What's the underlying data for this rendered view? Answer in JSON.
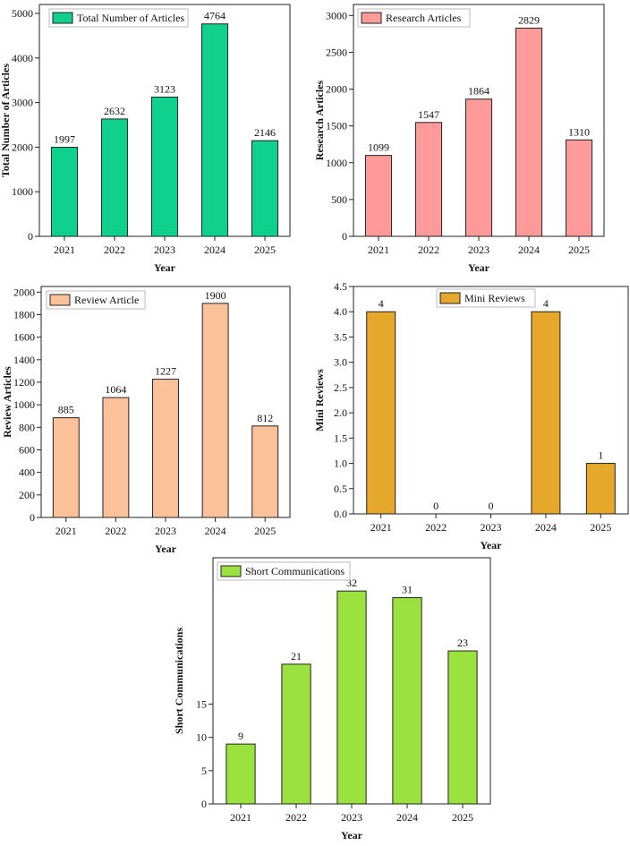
{
  "chart_data": [
    {
      "type": "bar",
      "categories": [
        "2021",
        "2022",
        "2023",
        "2024",
        "2025"
      ],
      "values": [
        1997,
        2632,
        3123,
        4764,
        2146
      ],
      "series_name": "Total Number of Articles",
      "xlabel": "Year",
      "ylabel": "Total Number of Articles",
      "ylim": [
        0,
        5200
      ],
      "yticks": [
        0,
        1000,
        2000,
        3000,
        4000,
        5000
      ],
      "color": "#0fd08c",
      "legend": "top-left"
    },
    {
      "type": "bar",
      "categories": [
        "2021",
        "2022",
        "2023",
        "2024",
        "2025"
      ],
      "values": [
        1099,
        1547,
        1864,
        2829,
        1310
      ],
      "series_name": "Research Articles",
      "xlabel": "Year",
      "ylabel": "Research Articles",
      "ylim": [
        0,
        3150
      ],
      "yticks": [
        0,
        500,
        1000,
        1500,
        2000,
        2500,
        3000
      ],
      "color": "#ff9a9a",
      "legend": "top-left"
    },
    {
      "type": "bar",
      "categories": [
        "2021",
        "2022",
        "2023",
        "2024",
        "2025"
      ],
      "values": [
        885,
        1064,
        1227,
        1900,
        812
      ],
      "series_name": "Review Article",
      "xlabel": "Year",
      "ylabel": "Review  Articles",
      "ylim": [
        0,
        2050
      ],
      "yticks": [
        0,
        200,
        400,
        600,
        800,
        1000,
        1200,
        1400,
        1600,
        1800,
        2000
      ],
      "color": "#fbc299",
      "legend": "top-left"
    },
    {
      "type": "bar",
      "categories": [
        "2021",
        "2022",
        "2023",
        "2024",
        "2025"
      ],
      "values": [
        4,
        0,
        0,
        4,
        1
      ],
      "series_name": "Mini Reviews",
      "xlabel": "Year",
      "ylabel": "Mini Reviews",
      "ylim": [
        0,
        4.5
      ],
      "yticks": [
        0.0,
        0.5,
        1.0,
        1.5,
        2.0,
        2.5,
        3.0,
        3.5,
        4.0,
        4.5
      ],
      "ytick_labels": [
        "0.0",
        "0.5",
        "1.0",
        "1.5",
        "2.0",
        "2.5",
        "3.0",
        "3.5",
        "4.0",
        "4.5"
      ],
      "color": "#e6a82a",
      "legend": "top-right"
    },
    {
      "type": "bar",
      "categories": [
        "2021",
        "2022",
        "2023",
        "2024",
        "2025"
      ],
      "values": [
        9,
        21,
        32,
        31,
        23
      ],
      "series_name": "Short Communications",
      "xlabel": "Year",
      "ylabel": "Short Communications",
      "ylim": [
        0,
        37
      ],
      "yticks": [
        0,
        5,
        10,
        15
      ],
      "color": "#9be23e",
      "legend": "top-left"
    }
  ]
}
